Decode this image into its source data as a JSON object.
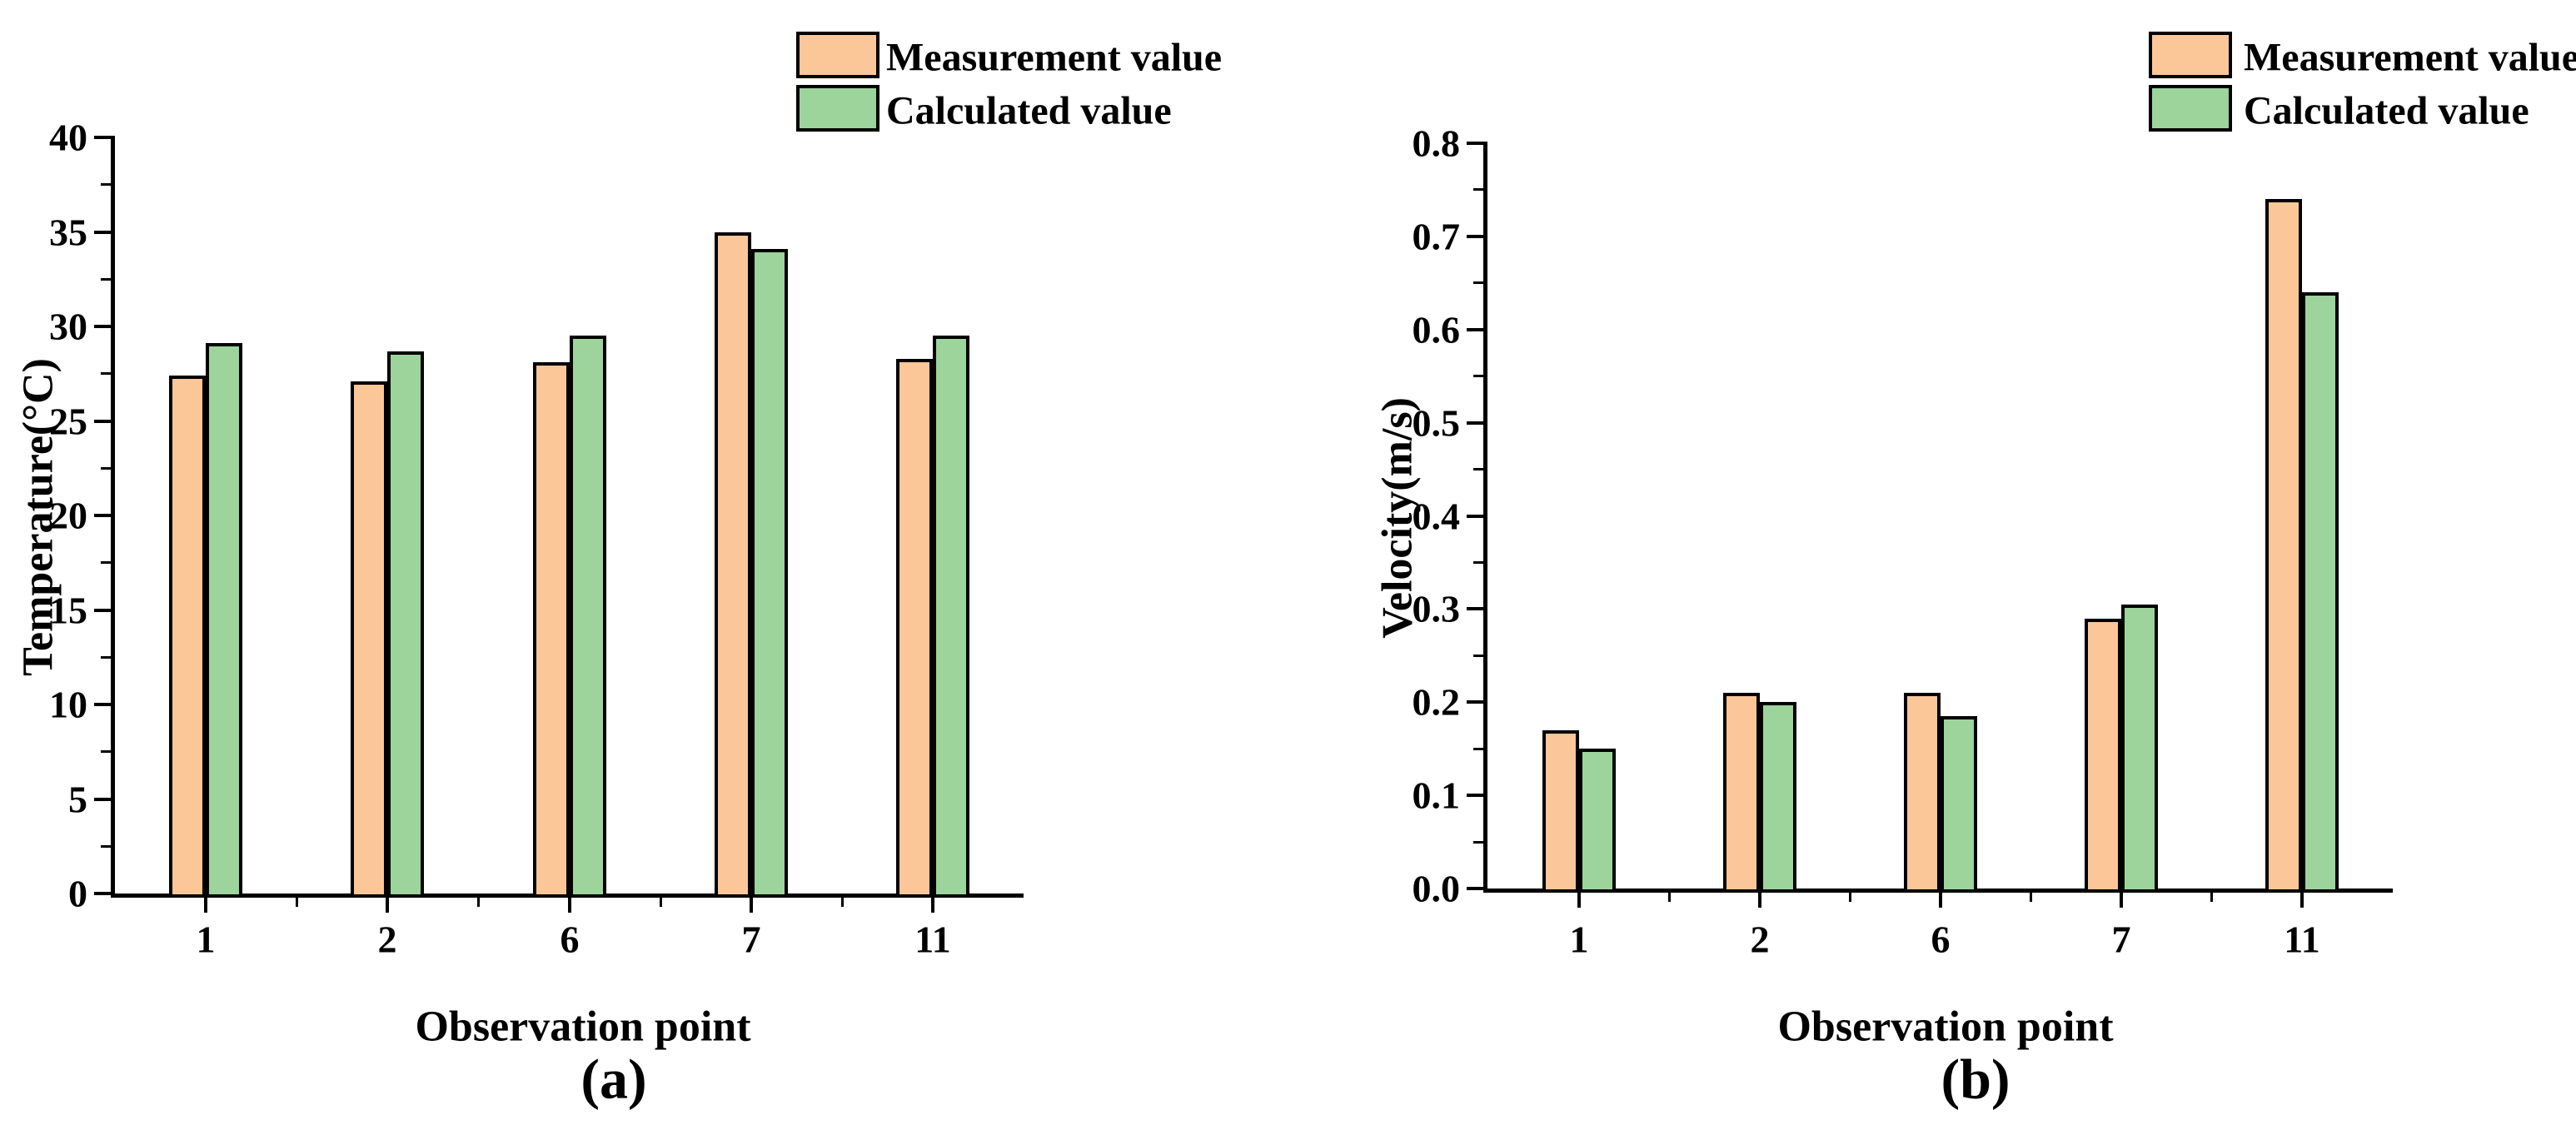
{
  "figure": {
    "background": "#FFFFFF",
    "text_color": "#000000",
    "axis_color": "#000000"
  },
  "chart_data": [
    {
      "type": "bar",
      "panel_label": "(a)",
      "xlabel": "Observation point",
      "ylabel": "Temperature(°C)",
      "categories": [
        "1",
        "2",
        "6",
        "7",
        "11"
      ],
      "series": [
        {
          "name": "Measurement value",
          "color": "#FBC698",
          "values": [
            27.4,
            27.1,
            28.1,
            35.0,
            28.3
          ]
        },
        {
          "name": "Calculated value",
          "color": "#9CD49B",
          "values": [
            29.1,
            28.7,
            29.5,
            34.1,
            29.5
          ]
        }
      ],
      "ylim": [
        0,
        40
      ],
      "ytick_step": 5,
      "yminor_step": 2.5,
      "yticks": [
        "0",
        "5",
        "10",
        "15",
        "20",
        "25",
        "30",
        "35",
        "40"
      ],
      "legend_position": "above-plot-right",
      "grid": false
    },
    {
      "type": "bar",
      "panel_label": "(b)",
      "xlabel": "Observation point",
      "ylabel": "Velocity(m/s)",
      "categories": [
        "1",
        "2",
        "6",
        "7",
        "11"
      ],
      "series": [
        {
          "name": "Measurement value",
          "color": "#FBC698",
          "values": [
            0.17,
            0.21,
            0.21,
            0.29,
            0.74
          ]
        },
        {
          "name": "Calculated value",
          "color": "#9CD49B",
          "values": [
            0.15,
            0.2,
            0.185,
            0.305,
            0.64
          ]
        }
      ],
      "ylim": [
        0,
        0.8
      ],
      "ytick_step": 0.1,
      "yminor_step": 0.05,
      "yticks": [
        "0.0",
        "0.1",
        "0.2",
        "0.3",
        "0.4",
        "0.5",
        "0.6",
        "0.7",
        "0.8"
      ],
      "legend_position": "above-plot-right",
      "grid": false
    }
  ]
}
